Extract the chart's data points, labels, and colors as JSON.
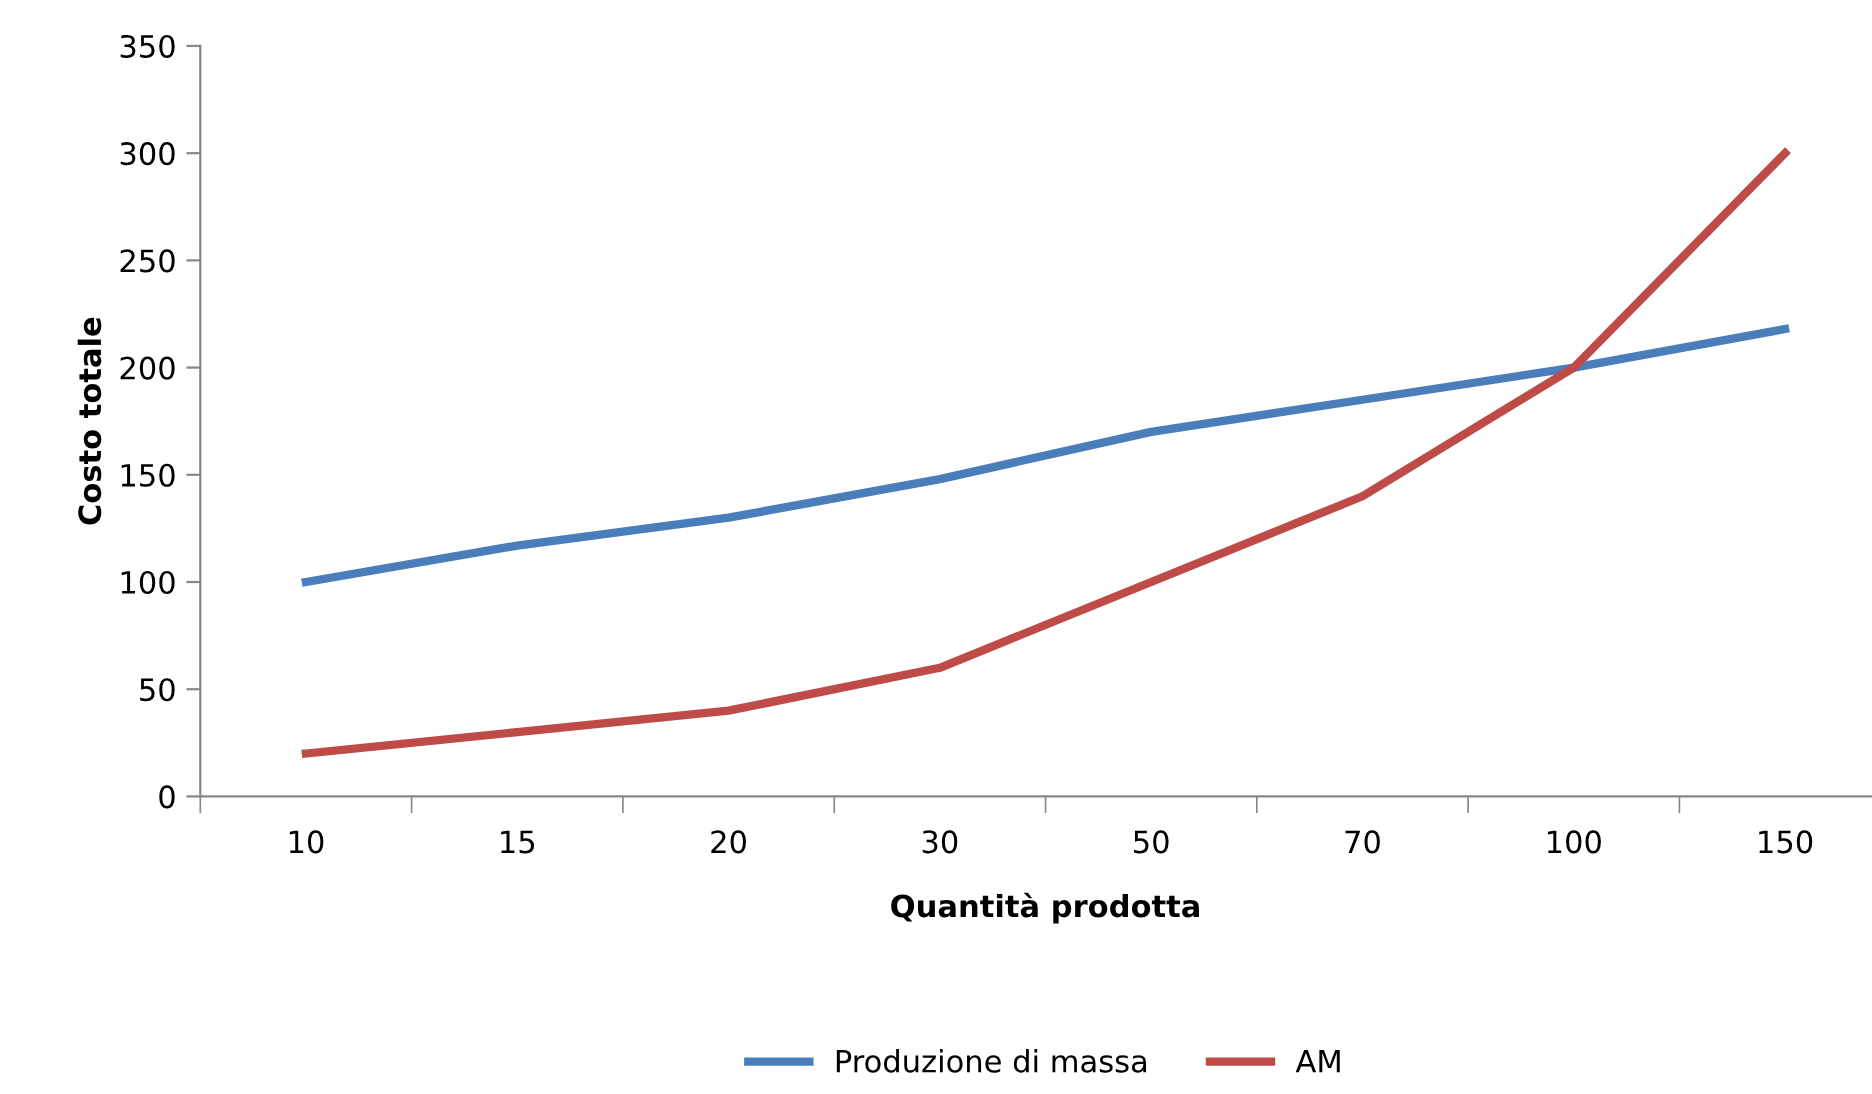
{
  "chart_data": {
    "type": "line",
    "xlabel": "Quantità prodotta",
    "ylabel": "Costo totale",
    "categories": [
      "10",
      "15",
      "20",
      "30",
      "50",
      "70",
      "100",
      "150"
    ],
    "series": [
      {
        "name": "Produzione di massa",
        "color": "#4a7ebb",
        "values": [
          100,
          117,
          130,
          148,
          170,
          185,
          200,
          218
        ]
      },
      {
        "name": "AM",
        "color": "#be4b48",
        "values": [
          20,
          30,
          40,
          60,
          100,
          140,
          200,
          300
        ]
      }
    ],
    "ylim": [
      0,
      350
    ],
    "yticks": [
      0,
      50,
      100,
      150,
      200,
      250,
      300,
      350
    ],
    "grid": false,
    "legend": "bottom",
    "marker": "none",
    "line_style": "solid"
  }
}
